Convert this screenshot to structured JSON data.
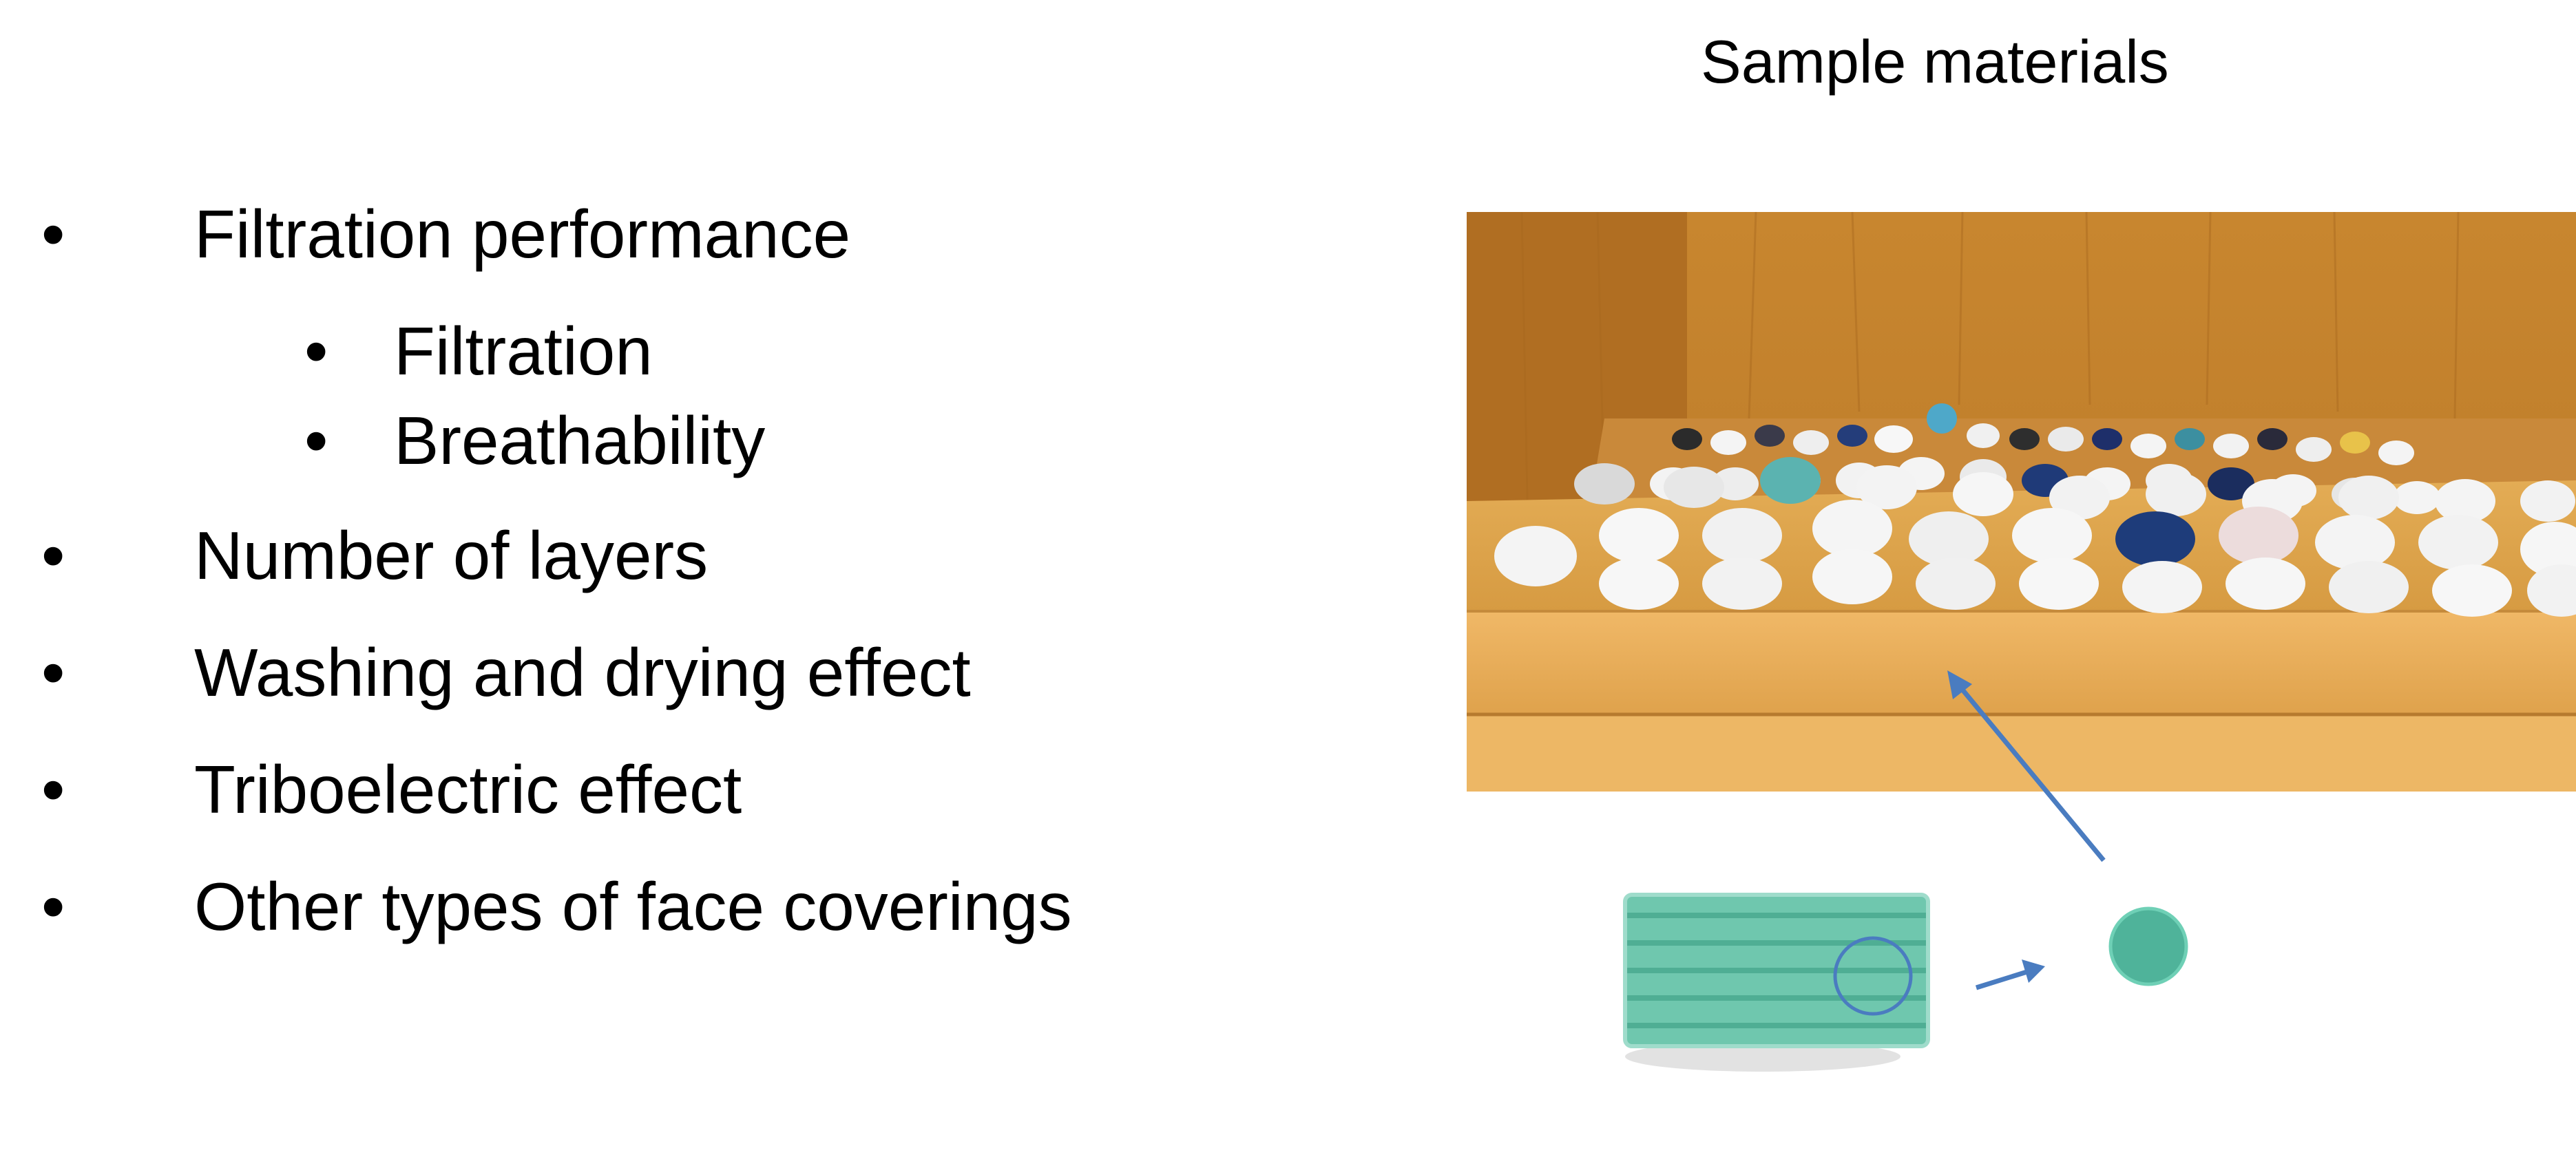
{
  "caption": "Sample materials",
  "bullets": [
    {
      "level": 1,
      "text": "Filtration performance"
    },
    {
      "level": 2,
      "text": "Filtration"
    },
    {
      "level": 2,
      "text": "Breathability"
    },
    {
      "level": 1,
      "text": "Number of layers"
    },
    {
      "level": 1,
      "text": "Washing and drying effect"
    },
    {
      "level": 1,
      "text": "Triboelectric effect"
    },
    {
      "level": 1,
      "text": "Other types of face coverings"
    }
  ],
  "bullet_glyph": "•",
  "colors": {
    "arrow": "#4a7cc0",
    "wood_light": "#dba24a",
    "wood_dark": "#b7782a",
    "mask_green": "#5fc2a8"
  }
}
